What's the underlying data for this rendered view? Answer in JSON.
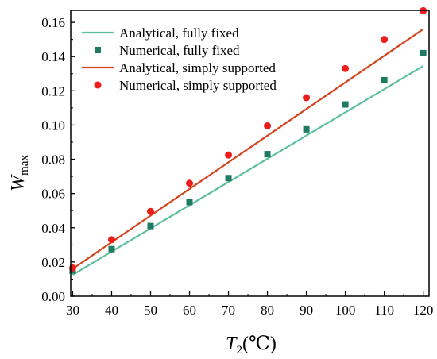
{
  "chart_data": {
    "type": "line+scatter",
    "title": "",
    "xlabel": {
      "symbol": "T",
      "subscript": "2",
      "unit": "(℃)"
    },
    "ylabel": {
      "symbol": "W",
      "subscript": "max"
    },
    "xlim": [
      29.5,
      121.5
    ],
    "ylim": [
      0,
      0.167
    ],
    "x_ticks": [
      30,
      40,
      50,
      60,
      70,
      80,
      90,
      100,
      110,
      120
    ],
    "y_ticks": [
      0.0,
      0.02,
      0.04,
      0.06,
      0.08,
      0.1,
      0.12,
      0.14,
      0.16
    ],
    "y_tick_labels": [
      "0.00",
      "0.02",
      "0.04",
      "0.06",
      "0.08",
      "0.10",
      "0.12",
      "0.14",
      "0.16"
    ],
    "legend_position": "top-left",
    "series": [
      {
        "name": "Analytical, fully fixed",
        "kind": "line",
        "color": "#5dbf9f",
        "x": [
          30,
          120
        ],
        "y": [
          0.0125,
          0.1345
        ]
      },
      {
        "name": "Numerical, fully fixed",
        "kind": "scatter",
        "marker": "square",
        "color": "#1e7a62",
        "x": [
          30,
          40,
          50,
          60,
          70,
          80,
          90,
          100,
          110,
          120
        ],
        "y": [
          0.015,
          0.0275,
          0.041,
          0.055,
          0.069,
          0.083,
          0.0975,
          0.112,
          0.1262,
          0.142
        ]
      },
      {
        "name": "Analytical, simply supported",
        "kind": "line",
        "color": "#d4451f",
        "x": [
          30,
          120
        ],
        "y": [
          0.016,
          0.156
        ]
      },
      {
        "name": "Numerical, simply supported",
        "kind": "scatter",
        "marker": "circle",
        "color": "#ee1c1c",
        "x": [
          30,
          40,
          50,
          60,
          70,
          80,
          90,
          100,
          110,
          120
        ],
        "y": [
          0.0165,
          0.033,
          0.0495,
          0.066,
          0.0825,
          0.0995,
          0.116,
          0.133,
          0.15,
          0.1668
        ]
      }
    ]
  }
}
